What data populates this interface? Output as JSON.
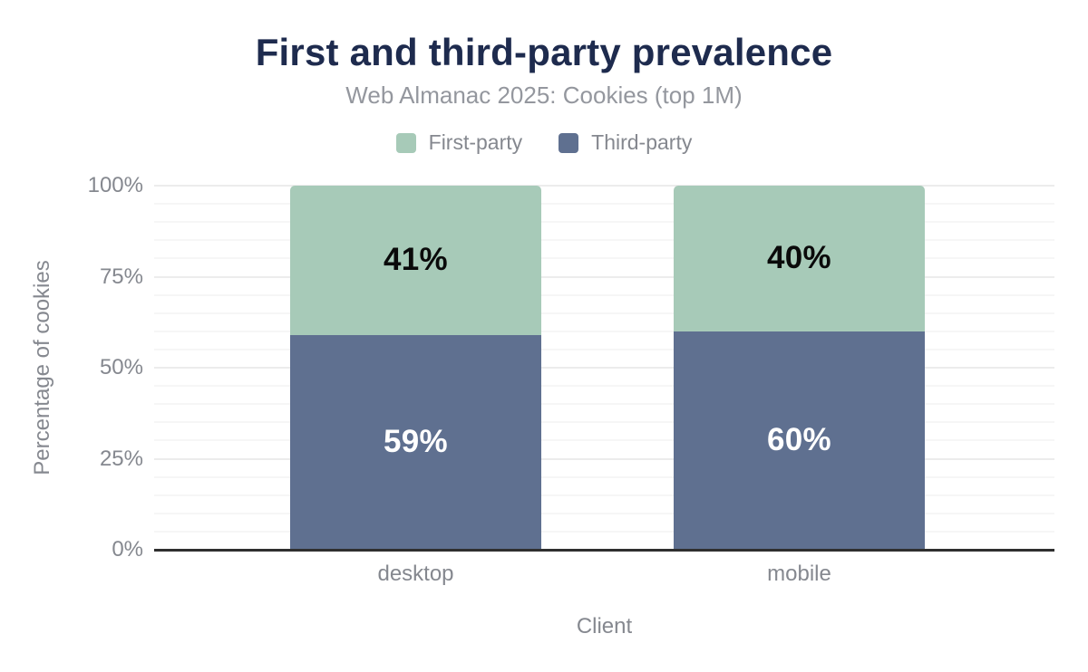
{
  "chart_data": {
    "type": "bar",
    "stacked": true,
    "title": "First and third-party prevalence",
    "subtitle": "Web Almanac 2025: Cookies (top 1M)",
    "categories": [
      "desktop",
      "mobile"
    ],
    "series": [
      {
        "name": "First-party",
        "color": "#a7cab8",
        "values": [
          41,
          40
        ],
        "data_labels": [
          "41%",
          "40%"
        ],
        "label_color": "#0a0a0a"
      },
      {
        "name": "Third-party",
        "color": "#5f7090",
        "values": [
          59,
          60
        ],
        "data_labels": [
          "59%",
          "60%"
        ],
        "label_color": "#ffffff"
      }
    ],
    "xlabel": "Client",
    "ylabel": "Percentage of cookies",
    "ylim": [
      0,
      100
    ],
    "ytick_labels": [
      "0%",
      "25%",
      "50%",
      "75%",
      "100%"
    ],
    "grid": {
      "horizontal": true,
      "minor_step_percent": 5,
      "major_step_percent": 25
    },
    "legend_position": "top"
  },
  "colors": {
    "title_text": "#1e2b4e",
    "subtitle_text": "#94979e",
    "muted_text": "#85888f",
    "first_party": "#a7cab8",
    "third_party": "#5f7090",
    "axis_line": "#2f2f2f",
    "gridline_minor": "#f6f6f6",
    "gridline_major": "#ececec",
    "background": "#ffffff"
  }
}
